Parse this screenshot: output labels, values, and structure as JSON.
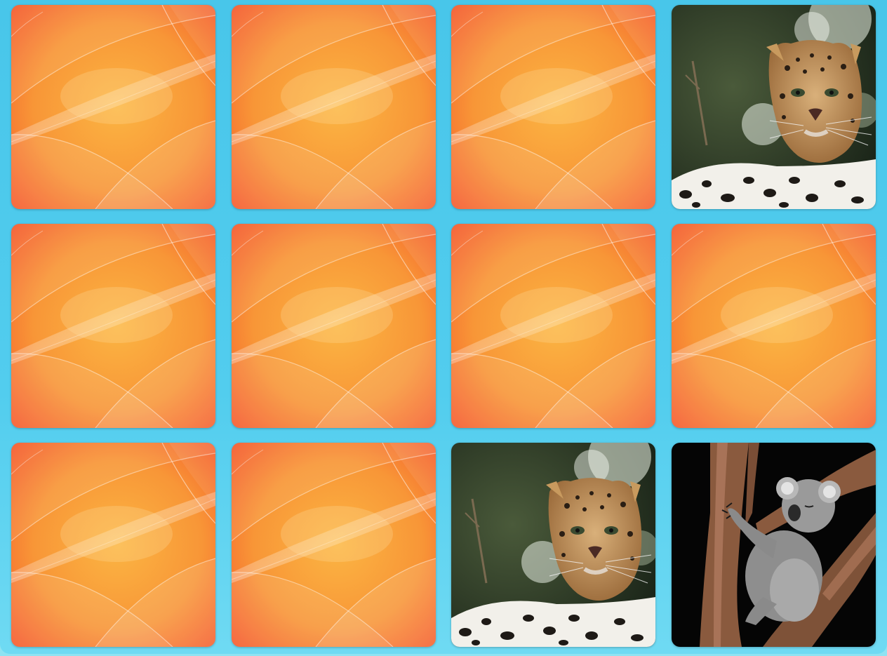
{
  "game": {
    "name": "memory-match",
    "columns": 4,
    "rows": 3,
    "cards": [
      {
        "state": "face-down",
        "image": "card-back"
      },
      {
        "state": "face-down",
        "image": "card-back"
      },
      {
        "state": "face-down",
        "image": "card-back"
      },
      {
        "state": "face-up",
        "image": "leopard"
      },
      {
        "state": "face-down",
        "image": "card-back"
      },
      {
        "state": "face-down",
        "image": "card-back"
      },
      {
        "state": "face-down",
        "image": "card-back"
      },
      {
        "state": "face-down",
        "image": "card-back"
      },
      {
        "state": "face-down",
        "image": "card-back"
      },
      {
        "state": "face-down",
        "image": "card-back"
      },
      {
        "state": "face-up",
        "image": "leopard"
      },
      {
        "state": "face-up",
        "image": "koala"
      }
    ]
  },
  "colors": {
    "board_background": "#4ccbed",
    "card_back_center": "#fbb447",
    "card_back_edge": "#f65a2a",
    "card_back_highlight": "#ffd3a0"
  }
}
